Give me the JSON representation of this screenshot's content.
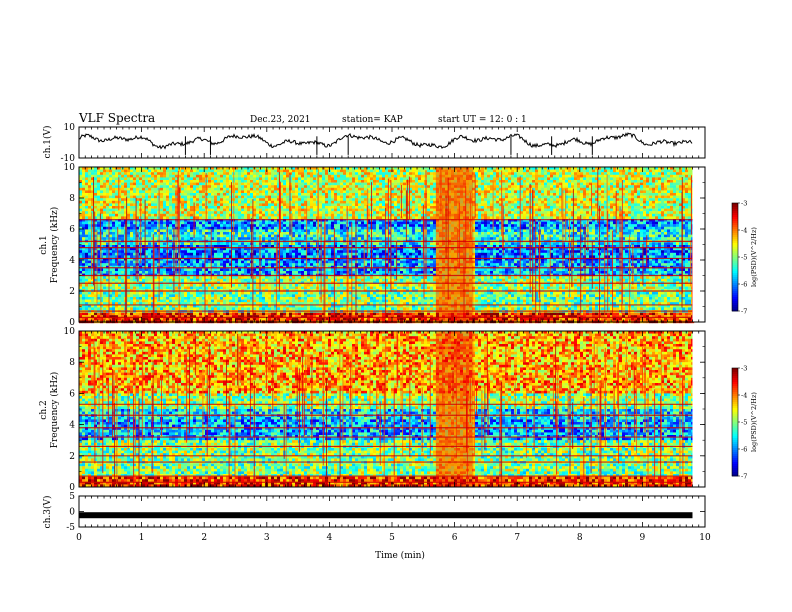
{
  "header": {
    "title": "VLF Spectra",
    "date": "Dec.23, 2021",
    "station": "station= KAP",
    "start_ut": "start  UT =   12: 0  : 1"
  },
  "chart_data": [
    {
      "type": "line",
      "panel": "ch1-waveform",
      "ylabel": "ch.1(V)",
      "ylim": [
        -10,
        10
      ],
      "yticks": [
        "10",
        "-10"
      ],
      "xlim": [
        0,
        10
      ],
      "trace_color": "#000000"
    },
    {
      "type": "heatmap",
      "panel": "ch1-spectrogram",
      "ylabel": "ch.1\nFrequency (kHz)",
      "ylim": [
        0,
        10
      ],
      "yticks": [
        "0",
        "2",
        "4",
        "6",
        "8",
        "10"
      ],
      "xlim": [
        0,
        9.8
      ],
      "colorbar": {
        "label": "log(PSD)(V^2/Hz)",
        "range": [
          -7,
          -3
        ],
        "ticks": [
          "-3",
          "-4",
          "-5",
          "-6",
          "-7"
        ]
      },
      "bands_khz": [
        {
          "from": 0,
          "to": 0.6,
          "level": -3.6
        },
        {
          "from": 0.6,
          "to": 1.0,
          "level": -5.0
        },
        {
          "from": 1.0,
          "to": 2.0,
          "level": -5.0
        },
        {
          "from": 2.0,
          "to": 3.0,
          "level": -4.9
        },
        {
          "from": 3.0,
          "to": 4.0,
          "level": -5.8
        },
        {
          "from": 4.0,
          "to": 5.0,
          "level": -6.0
        },
        {
          "from": 5.0,
          "to": 6.0,
          "level": -5.4
        },
        {
          "from": 6.0,
          "to": 6.6,
          "level": -5.9
        },
        {
          "from": 6.6,
          "to": 10.0,
          "level": -4.7
        }
      ],
      "lines_khz": [
        0.3,
        0.7,
        1.1,
        2.0,
        2.5,
        3.0,
        3.5,
        4.1,
        4.8,
        5.2,
        6.6
      ],
      "burst_min": [
        5.7,
        6.3
      ]
    },
    {
      "type": "heatmap",
      "panel": "ch2-spectrogram",
      "ylabel": "ch.2\nFrequency (kHz)",
      "ylim": [
        0,
        10
      ],
      "yticks": [
        "0",
        "2",
        "4",
        "6",
        "8",
        "10"
      ],
      "xlim": [
        0,
        9.8
      ],
      "colorbar": {
        "label": "log(PSD)(V^2/Hz)",
        "range": [
          -7,
          -3
        ],
        "ticks": [
          "-3",
          "-4",
          "-5",
          "-6",
          "-7"
        ]
      },
      "bands_khz": [
        {
          "from": 0,
          "to": 0.6,
          "level": -3.6
        },
        {
          "from": 0.6,
          "to": 2.0,
          "level": -5.0
        },
        {
          "from": 2.0,
          "to": 3.0,
          "level": -5.0
        },
        {
          "from": 3.0,
          "to": 4.4,
          "level": -5.8
        },
        {
          "from": 4.4,
          "to": 5.0,
          "level": -5.6
        },
        {
          "from": 5.0,
          "to": 6.0,
          "level": -4.9
        },
        {
          "from": 6.0,
          "to": 10.0,
          "level": -4.2
        }
      ],
      "lines_khz": [
        0.3,
        0.7,
        1.6,
        2.0,
        2.6,
        3.2,
        3.8,
        4.6,
        5.3
      ],
      "burst_min": [
        5.7,
        6.3
      ]
    },
    {
      "type": "line",
      "panel": "ch3-waveform",
      "ylabel": "ch.3(V)",
      "ylim": [
        -5,
        5
      ],
      "yticks": [
        "5",
        "0",
        "-5"
      ],
      "xlim": [
        0,
        10
      ],
      "level_v": -1.2,
      "xlabel": "Time  (min)",
      "xticks": [
        "0",
        "1",
        "2",
        "3",
        "4",
        "5",
        "6",
        "7",
        "8",
        "9",
        "10"
      ]
    }
  ]
}
